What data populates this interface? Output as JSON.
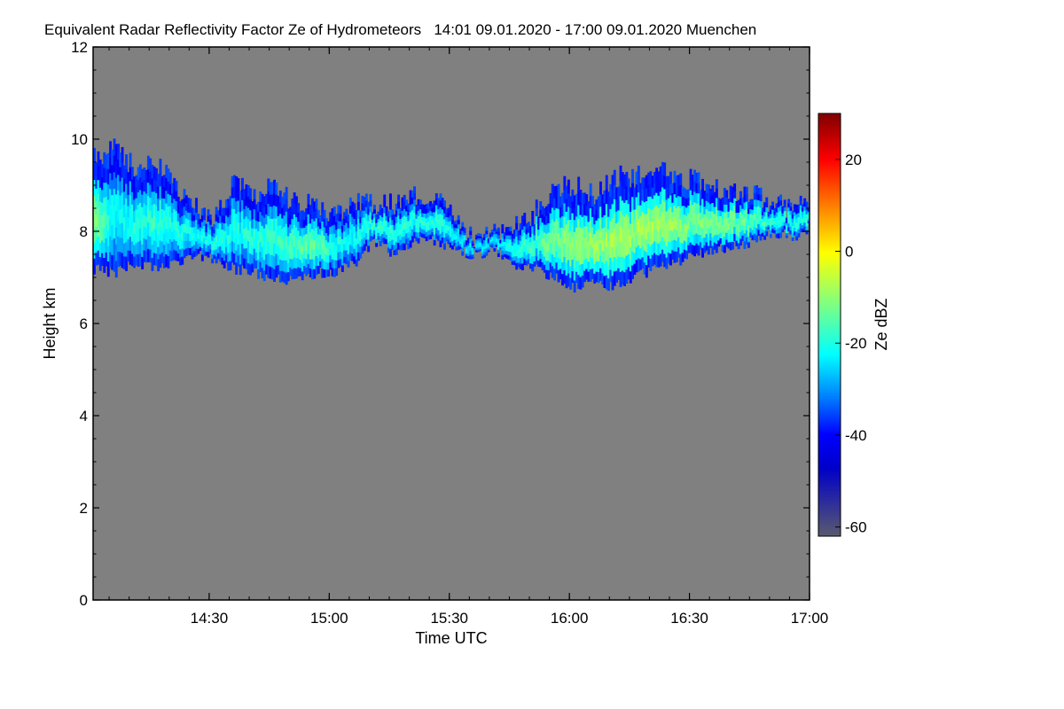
{
  "chart_data": {
    "type": "heatmap",
    "title": "Equivalent Radar Reflectivity Factor Ze of Hydrometeors   14:01 09.01.2020 - 17:00 09.01.2020 Muenchen",
    "xlabel": "Time UTC",
    "ylabel": "Height km",
    "x_start": "14:01",
    "x_end": "17:00",
    "x_range_minutes": [
      0,
      179
    ],
    "x_ticks": [
      {
        "label": "14:30",
        "minute": 29
      },
      {
        "label": "15:00",
        "minute": 59
      },
      {
        "label": "15:30",
        "minute": 89
      },
      {
        "label": "16:00",
        "minute": 119
      },
      {
        "label": "16:30",
        "minute": 149
      },
      {
        "label": "17:00",
        "minute": 179
      }
    ],
    "ylim": [
      0,
      12
    ],
    "y_ticks": [
      0,
      2,
      4,
      6,
      8,
      10,
      12
    ],
    "colorbar": {
      "label": "Ze dBZ",
      "range": [
        -62,
        30
      ],
      "ticks": [
        -60,
        -40,
        -20,
        0,
        20
      ],
      "colormap": [
        "#5a5a6e",
        "#0000c8",
        "#0000ff",
        "#0080ff",
        "#00ffff",
        "#80ff80",
        "#ffff00",
        "#ff8000",
        "#ff0000",
        "#800000"
      ]
    },
    "background_color": "#808080",
    "cloud_layer": {
      "description_minutes": "profile of ice cloud layer over time",
      "minutes": [
        0,
        5,
        10,
        15,
        20,
        25,
        30,
        35,
        40,
        45,
        50,
        55,
        60,
        65,
        70,
        75,
        80,
        85,
        90,
        95,
        100,
        105,
        110,
        115,
        120,
        125,
        130,
        135,
        140,
        145,
        150,
        155,
        160,
        165,
        170,
        175,
        179
      ],
      "base_km": [
        7.2,
        7.1,
        7.3,
        7.2,
        7.3,
        7.5,
        7.4,
        7.2,
        7.1,
        7.0,
        6.9,
        7.1,
        7.1,
        7.3,
        7.8,
        7.5,
        7.8,
        7.8,
        7.6,
        7.5,
        7.6,
        7.3,
        7.2,
        7.0,
        6.8,
        6.9,
        6.8,
        7.0,
        7.2,
        7.3,
        7.5,
        7.6,
        7.7,
        7.8,
        8.0,
        7.9,
        8.1
      ],
      "top_km": [
        9.6,
        9.8,
        9.4,
        9.6,
        9.0,
        8.6,
        8.2,
        9.2,
        8.8,
        9.0,
        8.6,
        8.6,
        8.4,
        8.6,
        8.6,
        8.6,
        8.8,
        8.8,
        8.4,
        7.8,
        8.0,
        8.2,
        8.4,
        9.0,
        9.0,
        8.8,
        9.2,
        9.2,
        9.3,
        9.2,
        9.1,
        8.9,
        8.9,
        8.8,
        8.6,
        8.5,
        8.6
      ],
      "peak_dbz": [
        -10,
        -22,
        -20,
        -18,
        -20,
        -22,
        -20,
        -20,
        -20,
        -18,
        -16,
        -14,
        -20,
        -22,
        -18,
        -20,
        -20,
        -18,
        -22,
        -24,
        -24,
        -20,
        -16,
        -12,
        -10,
        -8,
        -8,
        -8,
        -8,
        -10,
        -12,
        -12,
        -12,
        -16,
        -18,
        -20,
        -18
      ]
    }
  }
}
